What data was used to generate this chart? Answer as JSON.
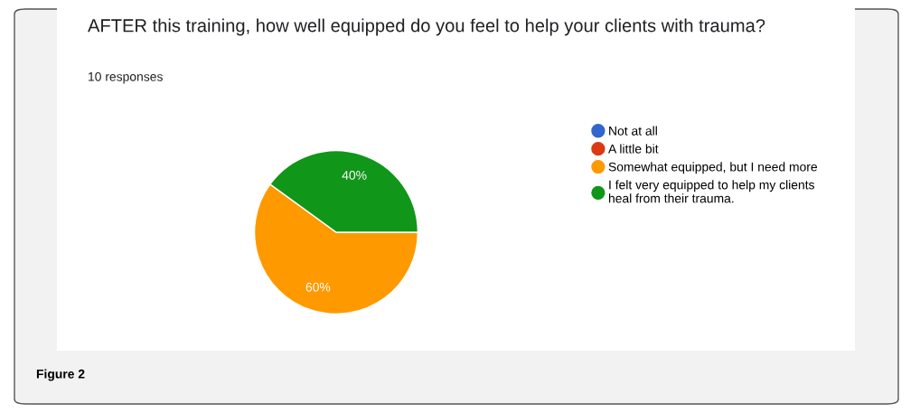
{
  "chart_data": {
    "type": "pie",
    "title": "AFTER this training, how well equipped do you feel to help your clients with trauma?",
    "subtitle": "10 responses",
    "categories": [
      "Not at all",
      "A little bit",
      "Somewhat equipped, but I need more",
      "I felt very equipped to help my clients heal from their trauma."
    ],
    "values": [
      0,
      0,
      60,
      40
    ],
    "colors": [
      "#3366cc",
      "#dc3912",
      "#ff9900",
      "#109618"
    ],
    "value_labels": [
      null,
      null,
      "60%",
      "40%"
    ],
    "legend": "right",
    "annotations": [
      "Figure 2"
    ]
  }
}
